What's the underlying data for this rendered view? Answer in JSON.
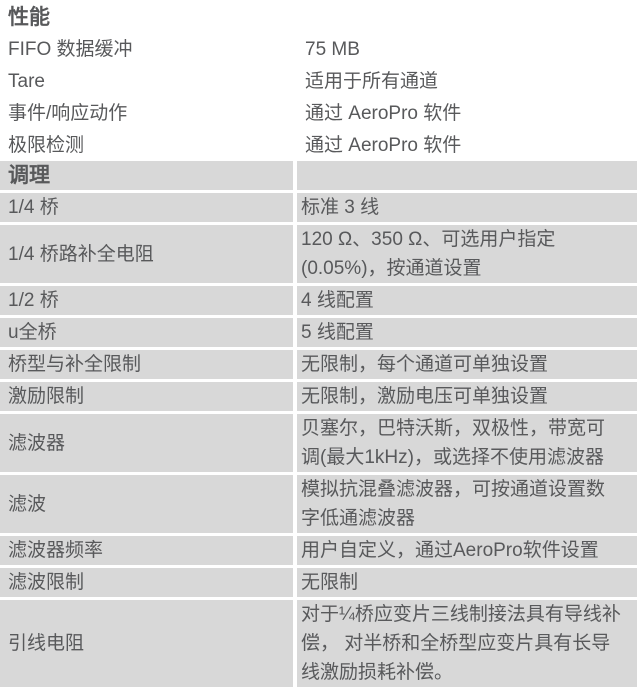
{
  "theme": {
    "page_bg": "#ffffff",
    "row_bg": "#d8d8d8",
    "separator_color": "#ffffff",
    "text_color": "#58595b"
  },
  "table": {
    "sections": [
      {
        "header": "性能",
        "style": "plain",
        "rows": [
          {
            "label": "FIFO 数据缓冲",
            "value": "75 MB"
          },
          {
            "label": "Tare",
            "value": "适用于所有通道"
          },
          {
            "label": "事件/响应动作",
            "value": "通过 AeroPro 软件"
          },
          {
            "label": "极限检测",
            "value": "通过 AeroPro 软件"
          }
        ]
      },
      {
        "header": "调理",
        "style": "striped",
        "rows": [
          {
            "label": "1/4 桥",
            "value": "标准 3 线"
          },
          {
            "label": "1/4 桥路补全电阻",
            "value": "120 Ω、350 Ω、可选用户指定 (0.05%)，按通道设置"
          },
          {
            "label": "1/2 桥",
            "value": "4 线配置"
          },
          {
            "label": "u全桥",
            "value": "5 线配置"
          },
          {
            "label": "桥型与补全限制",
            "value": "无限制，每个通道可单独设置"
          },
          {
            "label": "激励限制",
            "value": "无限制，激励电压可单独设置"
          },
          {
            "label": "滤波器",
            "value": "贝塞尔，巴特沃斯，双极性，带宽可调(最大1kHz)，或选择不使用滤波器"
          },
          {
            "label": "滤波",
            "value": "模拟抗混叠滤波器，可按通道设置数字低通滤波器"
          },
          {
            "label": "滤波器频率",
            "value": "用户自定义，通过AeroPro软件设置"
          },
          {
            "label": "滤波限制",
            "value": "无限制"
          },
          {
            "label": "引线电阻",
            "value": "对于¼桥应变片三线制接法具有导线补偿， 对半桥和全桥型应变片具有长导线激励损耗补偿。"
          }
        ]
      }
    ]
  }
}
